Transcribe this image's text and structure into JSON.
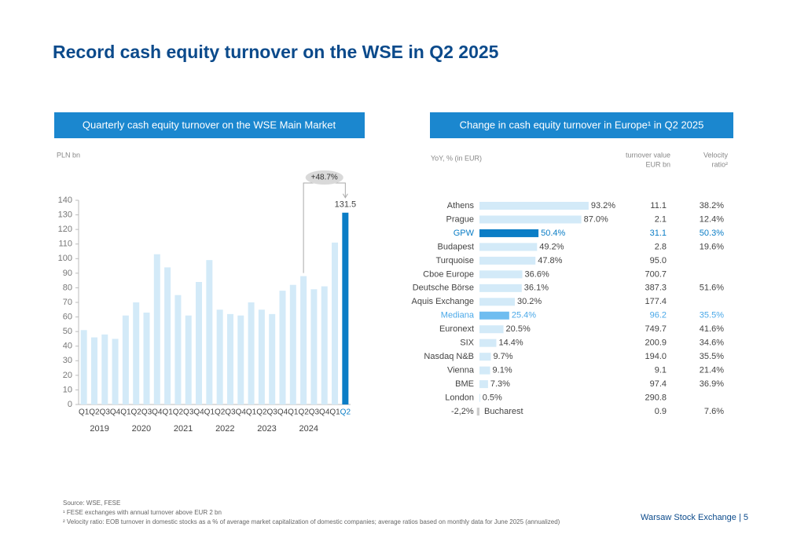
{
  "title": "Record cash equity turnover on the WSE in Q2 2025",
  "chart_data": [
    {
      "type": "bar",
      "title": "Quarterly cash equity turnover on the WSE Main Market",
      "ylabel": "PLN bn",
      "categories": [
        "Q1",
        "Q2",
        "Q3",
        "Q4",
        "Q1",
        "Q2",
        "Q3",
        "Q4",
        "Q1",
        "Q2",
        "Q3",
        "Q4",
        "Q1",
        "Q2",
        "Q3",
        "Q4",
        "Q1",
        "Q2",
        "Q3",
        "Q4",
        "Q1",
        "Q2",
        "Q3",
        "Q4",
        "Q1",
        "Q2"
      ],
      "year_labels": [
        "2019",
        "2020",
        "2021",
        "2022",
        "2023",
        "2024"
      ],
      "values": [
        51,
        46,
        48,
        45,
        61,
        70,
        63,
        103,
        94,
        75,
        61,
        84,
        99,
        65,
        62,
        61,
        70,
        65,
        62,
        78,
        82,
        88,
        79,
        81,
        111,
        131.5
      ],
      "colors": [
        "#d3eaf8",
        "#d3eaf8",
        "#d3eaf8",
        "#d3eaf8",
        "#d3eaf8",
        "#d3eaf8",
        "#d3eaf8",
        "#d3eaf8",
        "#d3eaf8",
        "#d3eaf8",
        "#d3eaf8",
        "#d3eaf8",
        "#d3eaf8",
        "#d3eaf8",
        "#d3eaf8",
        "#d3eaf8",
        "#d3eaf8",
        "#d3eaf8",
        "#d3eaf8",
        "#d3eaf8",
        "#d3eaf8",
        "#d3eaf8",
        "#d3eaf8",
        "#d3eaf8",
        "#d3eaf8",
        "#0a7dc6"
      ],
      "annotation": "+48.7%",
      "ylim": [
        0,
        140
      ],
      "yticks": [
        0,
        10,
        20,
        30,
        40,
        50,
        60,
        70,
        80,
        90,
        100,
        110,
        120,
        130,
        140
      ]
    },
    {
      "type": "hbar",
      "title": "Change in cash equity turnover in Europe¹ in Q2 2025",
      "xlabel": "YoY, % (in EUR)",
      "categories": [
        "Athens",
        "Prague",
        "GPW",
        "Budapest",
        "Turquoise",
        "Cboe Europe",
        "Deutsche Börse",
        "Aquis Exchange",
        "Mediana",
        "Euronext",
        "SIX",
        "Nasdaq N&B",
        "Vienna",
        "BME",
        "London",
        "Bucharest"
      ],
      "values": [
        93.2,
        87.0,
        50.4,
        49.2,
        47.8,
        36.6,
        36.1,
        30.2,
        25.4,
        20.5,
        14.4,
        9.7,
        9.1,
        7.3,
        0.5,
        -2.2
      ],
      "value_labels": [
        "93.2%",
        "87.0%",
        "50.4%",
        "49.2%",
        "47.8%",
        "36.6%",
        "36.1%",
        "30.2%",
        "25.4%",
        "20.5%",
        "14.4%",
        "9.7%",
        "9.1%",
        "7.3%",
        "0.5%",
        "-2,2%"
      ],
      "colors": [
        "#d3eaf8",
        "#d3eaf8",
        "#0a7dc6",
        "#d3eaf8",
        "#d3eaf8",
        "#d3eaf8",
        "#d3eaf8",
        "#d3eaf8",
        "#6fbdf0",
        "#d3eaf8",
        "#d3eaf8",
        "#d3eaf8",
        "#d3eaf8",
        "#d3eaf8",
        "#d3eaf8",
        "#cccccc"
      ],
      "text_colors": [
        "#444",
        "#444",
        "#0a7dc6",
        "#444",
        "#444",
        "#444",
        "#444",
        "#444",
        "#4aa8e8",
        "#444",
        "#444",
        "#444",
        "#444",
        "#444",
        "#444",
        "#444"
      ],
      "xlim": [
        0,
        100
      ],
      "columns": [
        {
          "header": [
            "turnover value",
            "EUR bn"
          ],
          "cells": [
            "11.1",
            "2.1",
            "31.1",
            "2.8",
            "95.0",
            "700.7",
            "387.3",
            "177.4",
            "96.2",
            "749.7",
            "200.9",
            "194.0",
            "9.1",
            "97.4",
            "290.8",
            "0.9"
          ]
        },
        {
          "header": [
            "Velocity",
            "ratio²"
          ],
          "cells": [
            "38.2%",
            "12.4%",
            "50.3%",
            "19.6%",
            null,
            null,
            "51.6%",
            null,
            "35.5%",
            "41.6%",
            "34.6%",
            "35.5%",
            "21.4%",
            "36.9%",
            null,
            "7.6%"
          ]
        }
      ]
    }
  ],
  "footer": {
    "source": "Source: WSE, FESE",
    "notes": [
      "¹ FESE exchanges with annual turnover above EUR 2 bn",
      "² Velocity ratio: EOB turnover in domestic stocks as a % of average market capitalization of domestic companies; average ratios based on monthly data for June 2025 (annualized)"
    ],
    "brand": "Warsaw Stock Exchange | 5"
  }
}
